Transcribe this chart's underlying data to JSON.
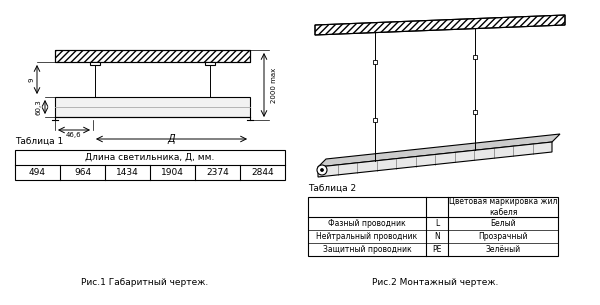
{
  "bg_color": "#ffffff",
  "fig_width": 6.0,
  "fig_height": 3.05,
  "table1_title": "Таблица 1",
  "table1_header": "Длина светильника, Д, мм.",
  "table1_values": [
    "494",
    "964",
    "1434",
    "1904",
    "2374",
    "2844"
  ],
  "table2_title": "Таблица 2",
  "table2_col_header": "Цветовая маркировка жил\nкабеля",
  "table2_rows": [
    [
      "Фазный проводник",
      "L",
      "Белый"
    ],
    [
      "Нейтральный проводник",
      "N",
      "Прозрачный"
    ],
    [
      "Защитный проводник",
      "PE",
      "Зелёный"
    ]
  ],
  "caption1": "Рис.1 Габаритный чертеж.",
  "caption2": "Рис.2 Монтажный чертеж.",
  "dim_60_3": "60,3",
  "dim_46_6": "46,6",
  "dim_D": "Д",
  "dim_2000": "2000 max",
  "dim_9": "9"
}
